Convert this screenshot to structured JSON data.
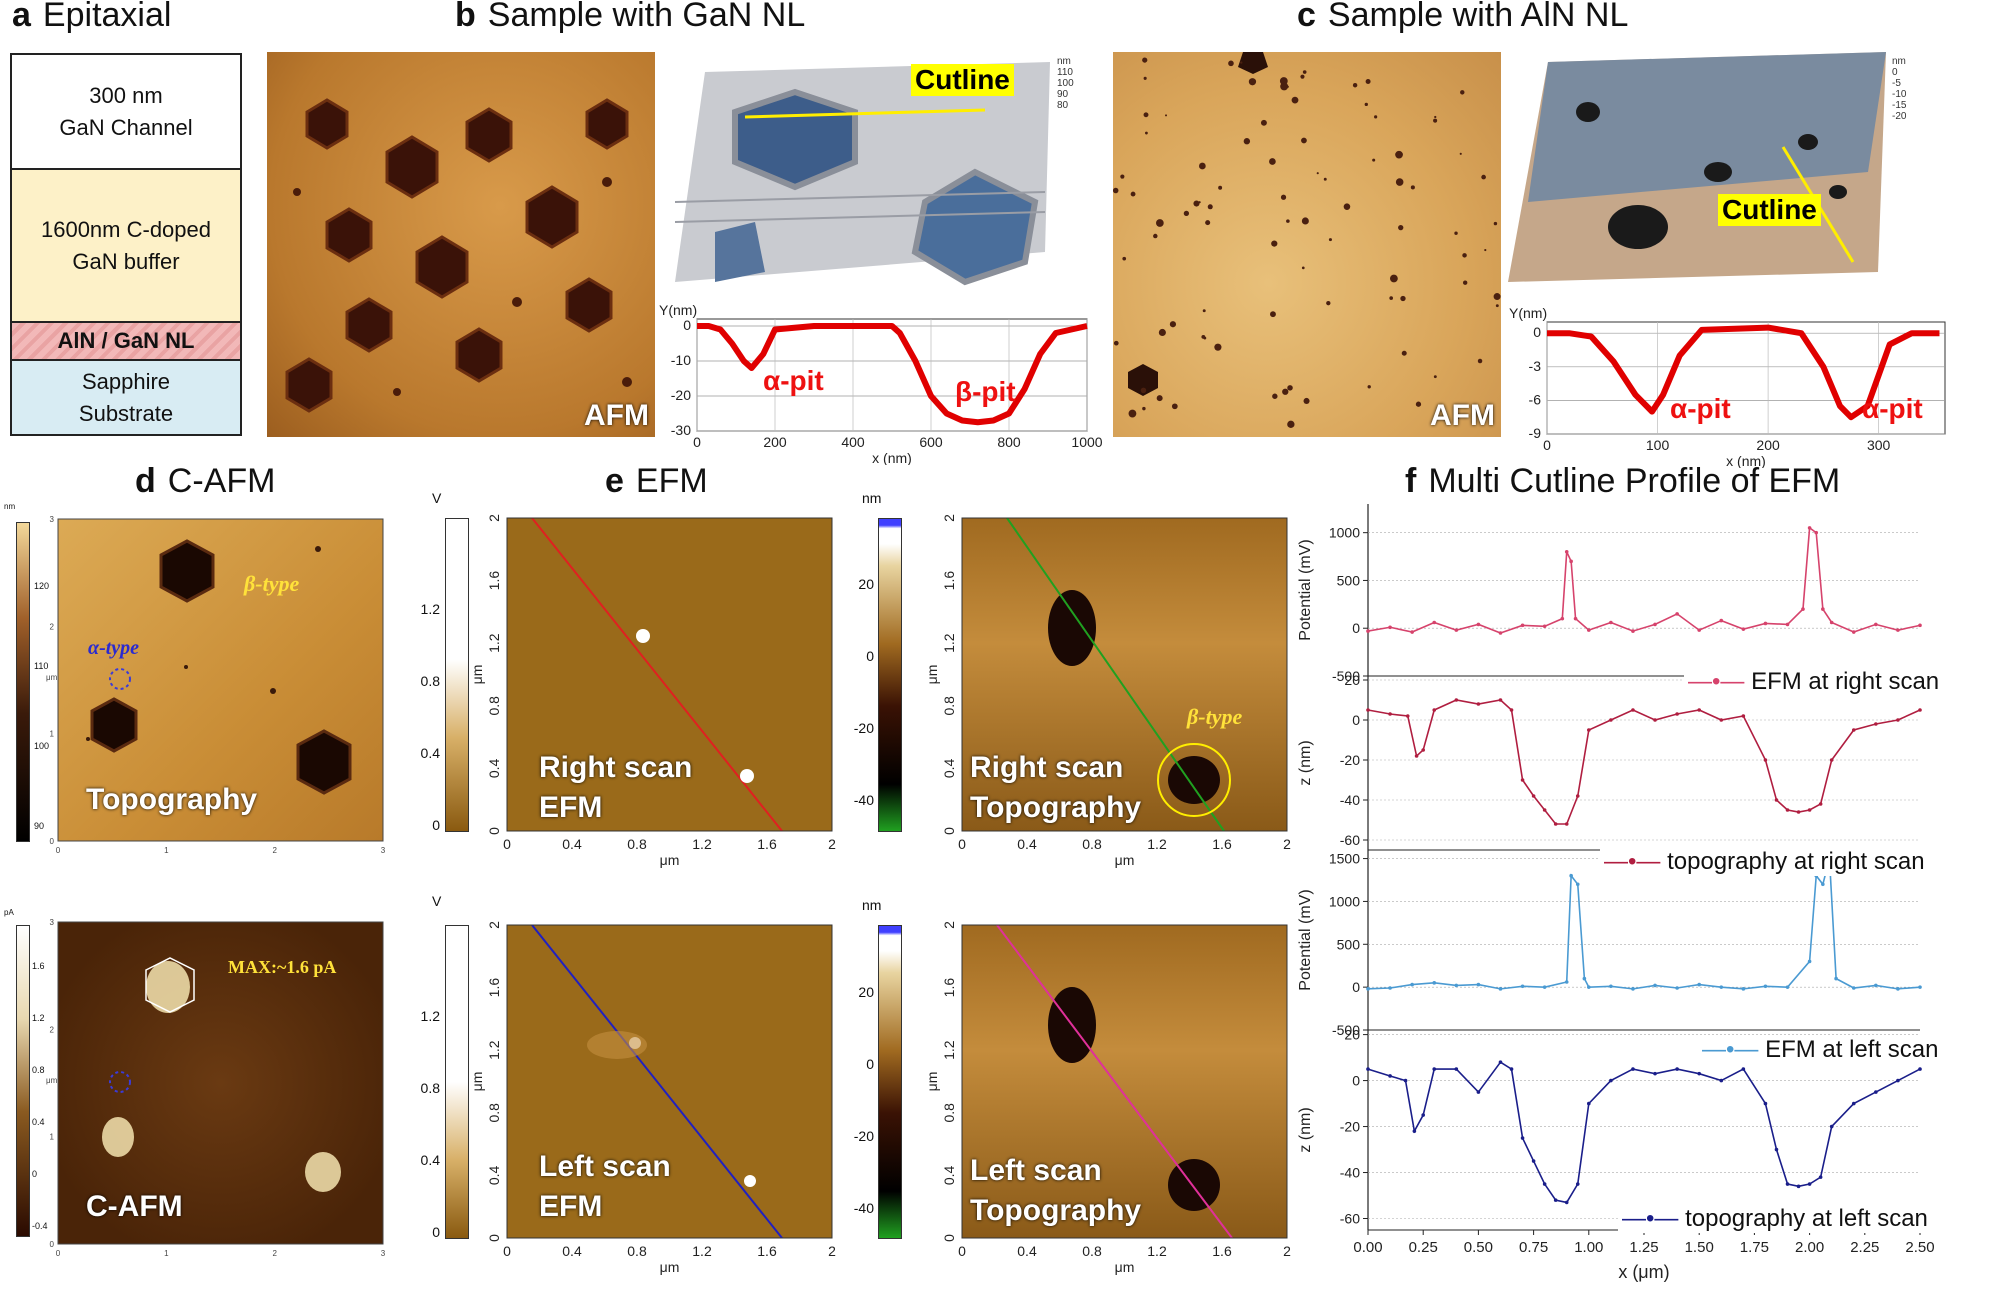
{
  "panels": {
    "a": {
      "letter": "a",
      "title": "Epitaxial",
      "layers": [
        {
          "label": "300 nm\nGaN Channel",
          "color": "#ffffff"
        },
        {
          "label": "1600nm C-doped\nGaN buffer",
          "color": "#fdf1c8"
        },
        {
          "label": "AlN / GaN NL",
          "color": "#f2b8b8"
        },
        {
          "label": "Sapphire\nSubstrate",
          "color": "#d8ecf3"
        }
      ]
    },
    "b": {
      "letter": "b",
      "title": "Sample with GaN NL",
      "afm_label": "AFM",
      "cutline_label": "Cutline",
      "alpha_label": "α-pit",
      "beta_label": "β-pit",
      "z_unit": "nm",
      "z_ticks": [
        "110",
        "100",
        "90",
        "80"
      ]
    },
    "c": {
      "letter": "c",
      "title": "Sample with AlN NL",
      "afm_label": "AFM",
      "cutline_label": "Cutline",
      "alpha1": "α-pit",
      "alpha2": "α-pit",
      "z_unit": "nm",
      "z_ticks": [
        "0",
        "-5",
        "-10",
        "-15",
        "-20"
      ]
    },
    "d": {
      "letter": "d",
      "title": "C-AFM",
      "topo_label": "Topography",
      "beta_type": "β-type",
      "alpha_type": "α-type",
      "cafm_label": "C-AFM",
      "max_label": "MAX:~1.6 pA",
      "unit_nm": "nm",
      "unit_pa": "pA",
      "unit_um": "μm"
    },
    "e": {
      "letter": "e",
      "title": "EFM",
      "unit_v": "V",
      "unit_nm": "nm",
      "unit_um": "μm",
      "right_efm": "Right scan\nEFM",
      "right_topo": "Right scan\nTopography",
      "left_efm": "Left scan\nEFM",
      "left_topo": "Left scan\nTopography",
      "beta_type": "β-type"
    },
    "f": {
      "letter": "f",
      "title": "Multi Cutline Profile of EFM",
      "xlabel": "x (μm)"
    }
  },
  "chart_data": [
    {
      "type": "line",
      "id": "b_profile",
      "xlabel": "x (nm)",
      "ylabel": "Y(nm)",
      "xlim": [
        0,
        1000
      ],
      "ylim": [
        -30,
        2
      ],
      "xticks": [
        0,
        200,
        400,
        600,
        800,
        1000
      ],
      "yticks": [
        0,
        -10,
        -20,
        -30
      ],
      "color": "#e00000",
      "x": [
        0,
        30,
        60,
        90,
        120,
        140,
        170,
        200,
        300,
        400,
        500,
        520,
        560,
        600,
        640,
        680,
        720,
        760,
        800,
        840,
        880,
        920,
        960,
        1000
      ],
      "y": [
        0,
        0,
        -1,
        -5,
        -10,
        -12,
        -8,
        -1,
        0,
        0,
        0,
        -2,
        -10,
        -20,
        -25,
        -27,
        -27.5,
        -27,
        -25,
        -18,
        -8,
        -2,
        -1,
        0
      ]
    },
    {
      "type": "line",
      "id": "c_profile",
      "xlabel": "x (nm)",
      "ylabel": "Y(nm)",
      "xlim": [
        0,
        360
      ],
      "ylim": [
        -9,
        1
      ],
      "xticks": [
        0,
        100,
        200,
        300
      ],
      "yticks": [
        0,
        -3,
        -6,
        -9
      ],
      "color": "#e00000",
      "x": [
        0,
        20,
        40,
        60,
        80,
        95,
        105,
        120,
        140,
        170,
        200,
        230,
        250,
        265,
        275,
        290,
        310,
        330,
        355
      ],
      "y": [
        0,
        0,
        -0.3,
        -2.5,
        -5.5,
        -7,
        -5.5,
        -2,
        0.3,
        0.4,
        0.5,
        0,
        -3,
        -6.5,
        -7.5,
        -6.5,
        -1,
        0,
        0
      ]
    },
    {
      "type": "line",
      "id": "f1",
      "name": "EFM at right scan",
      "ylabel": "Potential (mV)",
      "ylim": [
        -500,
        1300
      ],
      "yticks": [
        -500,
        0,
        500,
        1000
      ],
      "color": "#d6436c",
      "x": [
        0,
        0.1,
        0.2,
        0.3,
        0.4,
        0.5,
        0.6,
        0.7,
        0.8,
        0.88,
        0.9,
        0.92,
        0.94,
        1.0,
        1.1,
        1.2,
        1.3,
        1.4,
        1.5,
        1.6,
        1.7,
        1.8,
        1.9,
        1.97,
        2.0,
        2.03,
        2.06,
        2.1,
        2.2,
        2.3,
        2.4,
        2.5
      ],
      "y": [
        -30,
        10,
        -40,
        60,
        -20,
        40,
        -50,
        30,
        20,
        100,
        800,
        700,
        100,
        -20,
        60,
        -30,
        40,
        150,
        -20,
        80,
        -10,
        50,
        40,
        200,
        1050,
        1000,
        200,
        60,
        -40,
        40,
        -20,
        30
      ]
    },
    {
      "type": "line",
      "id": "f2",
      "name": "topography at right scan",
      "ylabel": "z (nm)",
      "ylim": [
        -65,
        22
      ],
      "yticks": [
        -60,
        -40,
        -20,
        0,
        20
      ],
      "color": "#b01e40",
      "x": [
        0,
        0.1,
        0.18,
        0.22,
        0.25,
        0.3,
        0.4,
        0.5,
        0.6,
        0.65,
        0.7,
        0.75,
        0.8,
        0.85,
        0.9,
        0.95,
        1.0,
        1.1,
        1.2,
        1.3,
        1.4,
        1.5,
        1.6,
        1.7,
        1.8,
        1.85,
        1.9,
        1.95,
        2.0,
        2.05,
        2.1,
        2.2,
        2.3,
        2.4,
        2.5
      ],
      "y": [
        5,
        3,
        2,
        -18,
        -15,
        5,
        10,
        8,
        10,
        5,
        -30,
        -38,
        -45,
        -52,
        -52,
        -38,
        -5,
        0,
        5,
        0,
        3,
        5,
        0,
        2,
        -20,
        -40,
        -45,
        -46,
        -45,
        -42,
        -20,
        -5,
        -2,
        0,
        5
      ]
    },
    {
      "type": "line",
      "id": "f3",
      "name": "EFM at left scan",
      "ylabel": "Potential (mV)",
      "ylim": [
        -500,
        1600
      ],
      "yticks": [
        -500,
        0,
        500,
        1000,
        1500
      ],
      "color": "#4a9ad2",
      "x": [
        0,
        0.1,
        0.2,
        0.3,
        0.4,
        0.5,
        0.6,
        0.7,
        0.8,
        0.9,
        0.92,
        0.95,
        0.98,
        1.0,
        1.1,
        1.2,
        1.3,
        1.4,
        1.5,
        1.6,
        1.7,
        1.8,
        1.9,
        2.0,
        2.03,
        2.06,
        2.09,
        2.12,
        2.2,
        2.3,
        2.4,
        2.5
      ],
      "y": [
        -20,
        -10,
        30,
        50,
        20,
        30,
        -20,
        10,
        0,
        60,
        1300,
        1200,
        100,
        0,
        10,
        -20,
        20,
        -10,
        30,
        0,
        -20,
        10,
        0,
        300,
        1300,
        1200,
        1500,
        100,
        -10,
        20,
        -20,
        0
      ]
    },
    {
      "type": "line",
      "id": "f4",
      "name": "topography at left scan",
      "ylabel": "z (nm)",
      "ylim": [
        -65,
        22
      ],
      "yticks": [
        -60,
        -40,
        -20,
        0,
        20
      ],
      "color": "#1a1e8a",
      "x": [
        0,
        0.1,
        0.17,
        0.21,
        0.25,
        0.3,
        0.4,
        0.5,
        0.6,
        0.65,
        0.7,
        0.75,
        0.8,
        0.85,
        0.9,
        0.95,
        1.0,
        1.1,
        1.2,
        1.3,
        1.4,
        1.5,
        1.6,
        1.7,
        1.8,
        1.85,
        1.9,
        1.95,
        2.0,
        2.05,
        2.1,
        2.2,
        2.3,
        2.4,
        2.5
      ],
      "y": [
        5,
        2,
        0,
        -22,
        -15,
        5,
        5,
        -5,
        8,
        5,
        -25,
        -35,
        -45,
        -52,
        -53,
        -45,
        -10,
        0,
        5,
        3,
        5,
        3,
        0,
        5,
        -10,
        -30,
        -45,
        -46,
        -45,
        -42,
        -20,
        -10,
        -5,
        0,
        5
      ]
    }
  ],
  "f_xticks": [
    "0.00",
    "0.25",
    "0.50",
    "0.75",
    "1.00",
    "1.25",
    "1.50",
    "1.75",
    "2.00",
    "2.25",
    "2.50"
  ],
  "colorbars": {
    "d_top": [
      "120",
      "110",
      "100",
      "90"
    ],
    "d_bot": [
      "1.6",
      "1.2",
      "0.8",
      "0.4",
      "0",
      "-0.4"
    ],
    "e_v1": [
      "1.2",
      "0.8",
      "0.4",
      "0"
    ],
    "e_v2": [
      "1.2",
      "0.8",
      "0.4",
      "0"
    ],
    "e_nm1": [
      "20",
      "0",
      "-20",
      "-40"
    ],
    "e_nm2": [
      "20",
      "0",
      "-20",
      "-40"
    ]
  },
  "efm_axes": {
    "ticks": [
      "0",
      "0.4",
      "0.8",
      "1.2",
      "1.6",
      "2"
    ]
  },
  "cafm_axes": {
    "ticks": [
      "0",
      "1",
      "2",
      "3"
    ]
  }
}
